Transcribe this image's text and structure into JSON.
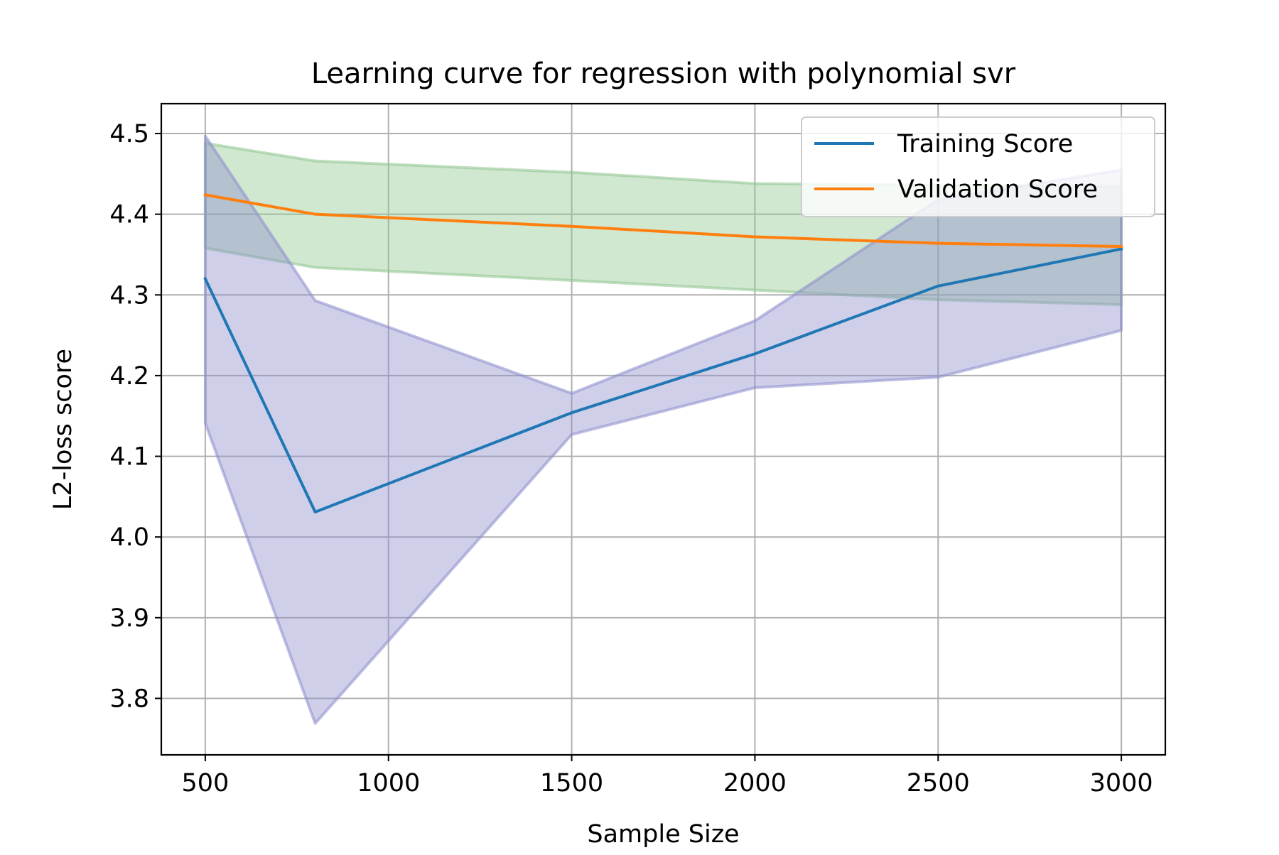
{
  "chart_data": {
    "type": "line",
    "title": "Learning curve for regression with polynomial svr",
    "xlabel": "Sample Size",
    "ylabel": "L2-loss score",
    "x": [
      500,
      800,
      1500,
      2000,
      2500,
      3000
    ],
    "xlim": [
      380,
      3120
    ],
    "ylim": [
      3.73,
      4.537
    ],
    "xticks": [
      500,
      1000,
      1500,
      2000,
      2500,
      3000
    ],
    "yticks": [
      3.8,
      3.9,
      4.0,
      4.1,
      4.2,
      4.3,
      4.4,
      4.5
    ],
    "grid": true,
    "legend_position": "top-right",
    "series": [
      {
        "name": "Training Score",
        "color": "#1f77b4",
        "values": [
          4.32,
          4.031,
          4.154,
          4.227,
          4.311,
          4.357
        ],
        "band_upper": [
          4.497,
          4.293,
          4.178,
          4.268,
          4.418,
          4.455
        ],
        "band_lower": [
          4.141,
          3.769,
          4.127,
          4.185,
          4.198,
          4.256
        ],
        "band_color": "#8c8ccc"
      },
      {
        "name": "Validation Score",
        "color": "#ff7f0e",
        "values": [
          4.424,
          4.4,
          4.385,
          4.372,
          4.364,
          4.36
        ],
        "band_upper": [
          4.488,
          4.466,
          4.452,
          4.438,
          4.436,
          4.434
        ],
        "band_lower": [
          4.358,
          4.334,
          4.318,
          4.306,
          4.294,
          4.288
        ],
        "band_color": "#8ec58e"
      }
    ]
  }
}
